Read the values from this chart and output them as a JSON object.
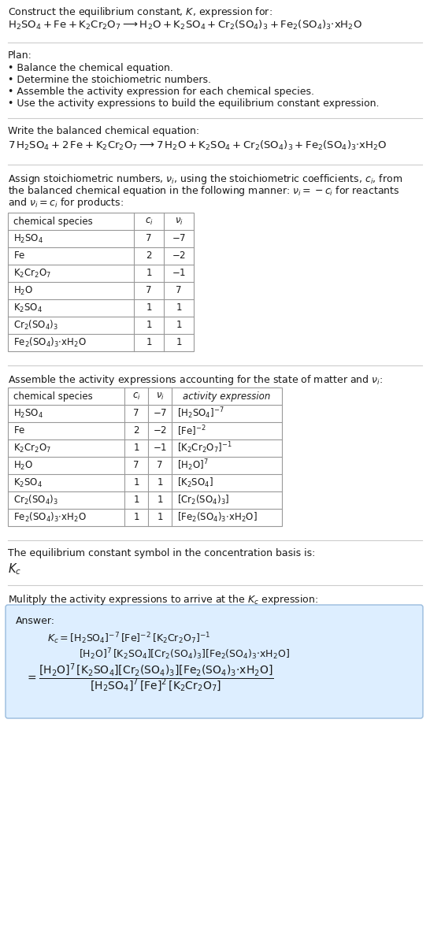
{
  "title_line1": "Construct the equilibrium constant, $K$, expression for:",
  "title_line2": "$\\mathrm{H_2SO_4 + Fe + K_2Cr_2O_7 \\longrightarrow H_2O + K_2SO_4 + Cr_2(SO_4)_3 + Fe_2(SO_4)_3{\\cdot}xH_2O}$",
  "plan_header": "Plan:",
  "plan_items": [
    "• Balance the chemical equation.",
    "• Determine the stoichiometric numbers.",
    "• Assemble the activity expression for each chemical species.",
    "• Use the activity expressions to build the equilibrium constant expression."
  ],
  "balanced_header": "Write the balanced chemical equation:",
  "balanced_eq": "$7\\,\\mathrm{H_2SO_4} + 2\\,\\mathrm{Fe} + \\mathrm{K_2Cr_2O_7} \\longrightarrow 7\\,\\mathrm{H_2O} + \\mathrm{K_2SO_4} + \\mathrm{Cr_2(SO_4)_3} + \\mathrm{Fe_2(SO_4)_3{\\cdot}xH_2O}$",
  "stoich_intro": "Assign stoichiometric numbers, $\\nu_i$, using the stoichiometric coefficients, $c_i$, from\nthe balanced chemical equation in the following manner: $\\nu_i = -c_i$ for reactants\nand $\\nu_i = c_i$ for products:",
  "table1_cols": [
    "chemical species",
    "$c_i$",
    "$\\nu_i$"
  ],
  "table1_rows": [
    [
      "$\\mathrm{H_2SO_4}$",
      "7",
      "$-7$"
    ],
    [
      "$\\mathrm{Fe}$",
      "2",
      "$-2$"
    ],
    [
      "$\\mathrm{K_2Cr_2O_7}$",
      "1",
      "$-1$"
    ],
    [
      "$\\mathrm{H_2O}$",
      "7",
      "7"
    ],
    [
      "$\\mathrm{K_2SO_4}$",
      "1",
      "1"
    ],
    [
      "$\\mathrm{Cr_2(SO_4)_3}$",
      "1",
      "1"
    ],
    [
      "$\\mathrm{Fe_2(SO_4)_3{\\cdot}xH_2O}$",
      "1",
      "1"
    ]
  ],
  "activity_intro": "Assemble the activity expressions accounting for the state of matter and $\\nu_i$:",
  "table2_cols": [
    "chemical species",
    "$c_i$",
    "$\\nu_i$",
    "activity expression"
  ],
  "table2_rows": [
    [
      "$\\mathrm{H_2SO_4}$",
      "7",
      "$-7$",
      "$[\\mathrm{H_2SO_4}]^{-7}$"
    ],
    [
      "$\\mathrm{Fe}$",
      "2",
      "$-2$",
      "$[\\mathrm{Fe}]^{-2}$"
    ],
    [
      "$\\mathrm{K_2Cr_2O_7}$",
      "1",
      "$-1$",
      "$[\\mathrm{K_2Cr_2O_7}]^{-1}$"
    ],
    [
      "$\\mathrm{H_2O}$",
      "7",
      "7",
      "$[\\mathrm{H_2O}]^7$"
    ],
    [
      "$\\mathrm{K_2SO_4}$",
      "1",
      "1",
      "$[\\mathrm{K_2SO_4}]$"
    ],
    [
      "$\\mathrm{Cr_2(SO_4)_3}$",
      "1",
      "1",
      "$[\\mathrm{Cr_2(SO_4)_3}]$"
    ],
    [
      "$\\mathrm{Fe_2(SO_4)_3{\\cdot}xH_2O}$",
      "1",
      "1",
      "$[\\mathrm{Fe_2(SO_4)_3{\\cdot}xH_2O}]$"
    ]
  ],
  "kc_intro": "The equilibrium constant symbol in the concentration basis is:",
  "kc_symbol": "$K_c$",
  "multiply_intro": "Mulitply the activity expressions to arrive at the $K_c$ expression:",
  "answer_label": "Answer:",
  "answer_line1": "$K_c = [\\mathrm{H_2SO_4}]^{-7}\\,[\\mathrm{Fe}]^{-2}\\,[\\mathrm{K_2Cr_2O_7}]^{-1}$",
  "answer_line2": "$[\\mathrm{H_2O}]^7\\,[\\mathrm{K_2SO_4}][\\mathrm{Cr_2(SO_4)_3}][\\mathrm{Fe_2(SO_4)_3{\\cdot}xH_2O}]$",
  "answer_eq_lhs": "$= \\dfrac{[\\mathrm{H_2O}]^7\\,[\\mathrm{K_2SO_4}][\\mathrm{Cr_2(SO_4)_3}][\\mathrm{Fe_2(SO_4)_3{\\cdot}xH_2O}]}{[\\mathrm{H_2SO_4}]^7\\,[\\mathrm{Fe}]^2\\,[\\mathrm{K_2Cr_2O_7}]}$",
  "bg_color": "#ffffff",
  "text_color": "#1a1a1a",
  "line_color": "#cccccc",
  "table_border_color": "#999999",
  "answer_bg": "#ddeeff",
  "answer_border": "#99bbdd",
  "fs": 9.0,
  "fs_table": 8.5,
  "fs_eq": 9.5
}
